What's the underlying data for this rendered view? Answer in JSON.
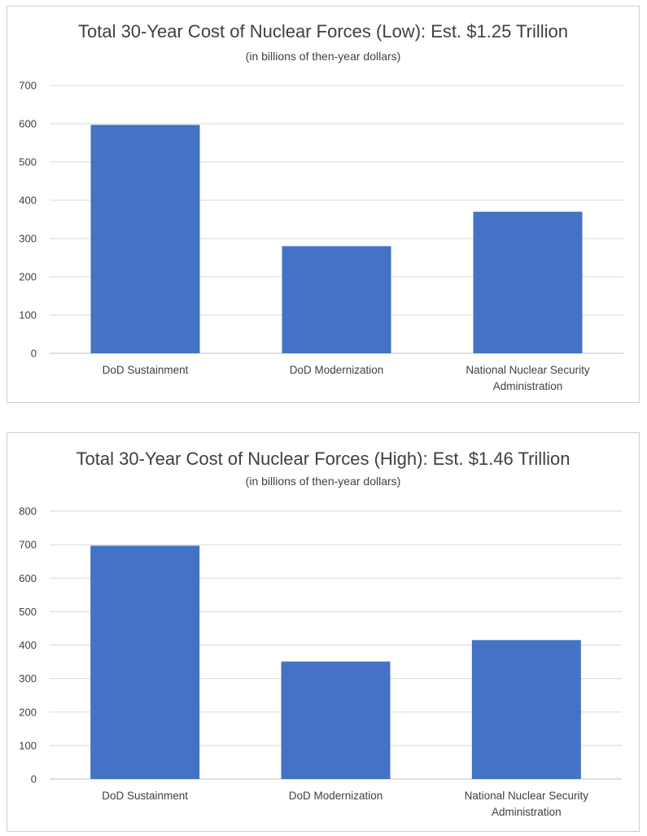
{
  "chart_data": [
    {
      "type": "bar",
      "title": "Total 30-Year Cost of Nuclear Forces (Low): Est. $1.25 Trillion",
      "subtitle": "(in billions of then-year dollars)",
      "categories": [
        "DoD Sustainment",
        "DoD Modernization",
        "National Nuclear Security Administration"
      ],
      "category_lines": [
        [
          "DoD Sustainment"
        ],
        [
          "DoD Modernization"
        ],
        [
          "National Nuclear Security",
          "Administration"
        ]
      ],
      "values": [
        597,
        280,
        370
      ],
      "ylim": [
        0,
        700
      ],
      "yticks": [
        0,
        100,
        200,
        300,
        400,
        500,
        600,
        700
      ],
      "grid": true,
      "bar_color": "#4472c4"
    },
    {
      "type": "bar",
      "title": "Total 30-Year Cost of Nuclear Forces (High): Est. $1.46 Trillion",
      "subtitle": "(in billions of then-year dollars)",
      "categories": [
        "DoD Sustainment",
        "DoD Modernization",
        "National Nuclear Security Administration"
      ],
      "category_lines": [
        [
          "DoD Sustainment"
        ],
        [
          "DoD Modernization"
        ],
        [
          "National Nuclear Security",
          "Administration"
        ]
      ],
      "values": [
        697,
        351,
        415
      ],
      "ylim": [
        0,
        800
      ],
      "yticks": [
        0,
        100,
        200,
        300,
        400,
        500,
        600,
        700,
        800
      ],
      "grid": true,
      "bar_color": "#4472c4"
    }
  ]
}
